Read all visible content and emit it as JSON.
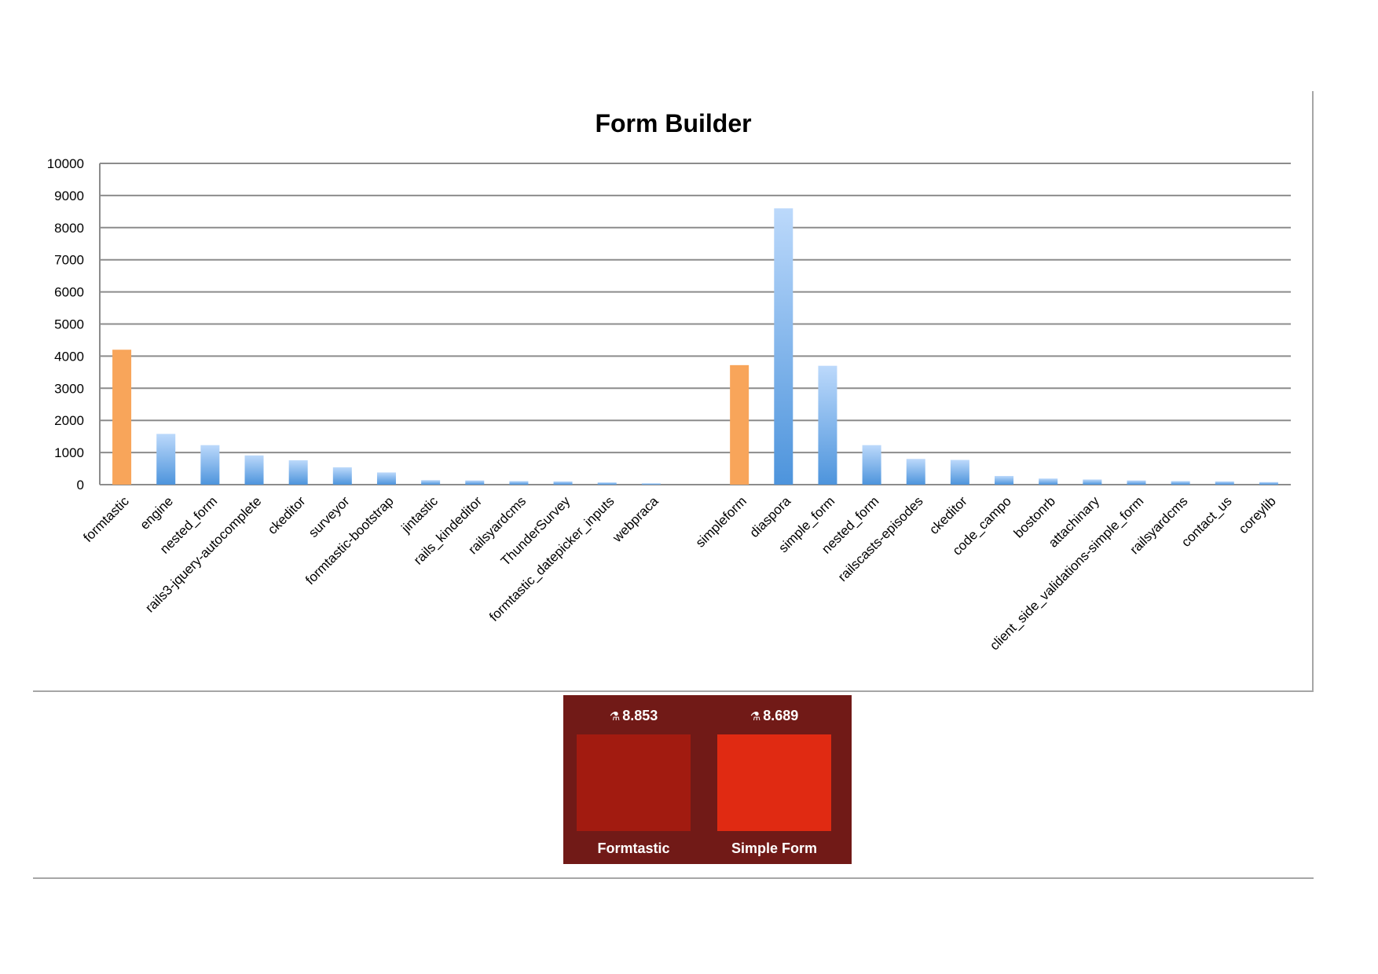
{
  "chart_data": {
    "type": "bar",
    "title": "Form Builder",
    "ylim": [
      0,
      10000
    ],
    "yticks": [
      0,
      1000,
      2000,
      3000,
      4000,
      5000,
      6000,
      7000,
      8000,
      9000,
      10000
    ],
    "grid": true,
    "legend": "none",
    "groups": [
      {
        "highlight_color": "#f8a55a",
        "categories": [
          "formtastic",
          "engine",
          "nested_form",
          "rails3-jquery-autocomplete",
          "ckeditor",
          "surveyor",
          "formtastic-bootstrap",
          "jintastic",
          "rails_kindeditor",
          "railsyardcms",
          "ThunderSurvey",
          "formtastic_datepicker_inputs",
          "webpraca"
        ],
        "values": [
          4200,
          1580,
          1230,
          910,
          760,
          540,
          380,
          140,
          130,
          110,
          100,
          70,
          40
        ]
      },
      {
        "highlight_color": "#f8a55a",
        "categories": [
          "simpleform",
          "diaspora",
          "simple_form",
          "nested_form",
          "railscasts-episodes",
          "ckeditor",
          "code_campo",
          "bostonrb",
          "attachinary",
          "client_side_validations-simple_form",
          "railsyardcms",
          "contact_us",
          "coreylib"
        ],
        "values": [
          3720,
          8600,
          3700,
          1230,
          800,
          770,
          270,
          190,
          160,
          130,
          110,
          100,
          80
        ]
      }
    ],
    "colors": {
      "highlight": "#f8a55a",
      "bar_top": "#bcd9fb",
      "bar_bottom": "#4d94dc",
      "grid": "#8c8c8c"
    }
  },
  "comparison": {
    "colors": {
      "panel": "#711a17"
    },
    "items": [
      {
        "score": "8.853",
        "name": "Formtastic",
        "color": "#a21b10"
      },
      {
        "score": "8.689",
        "name": "Simple Form",
        "color": "#e02a12"
      }
    ],
    "icon": "flask-icon"
  }
}
